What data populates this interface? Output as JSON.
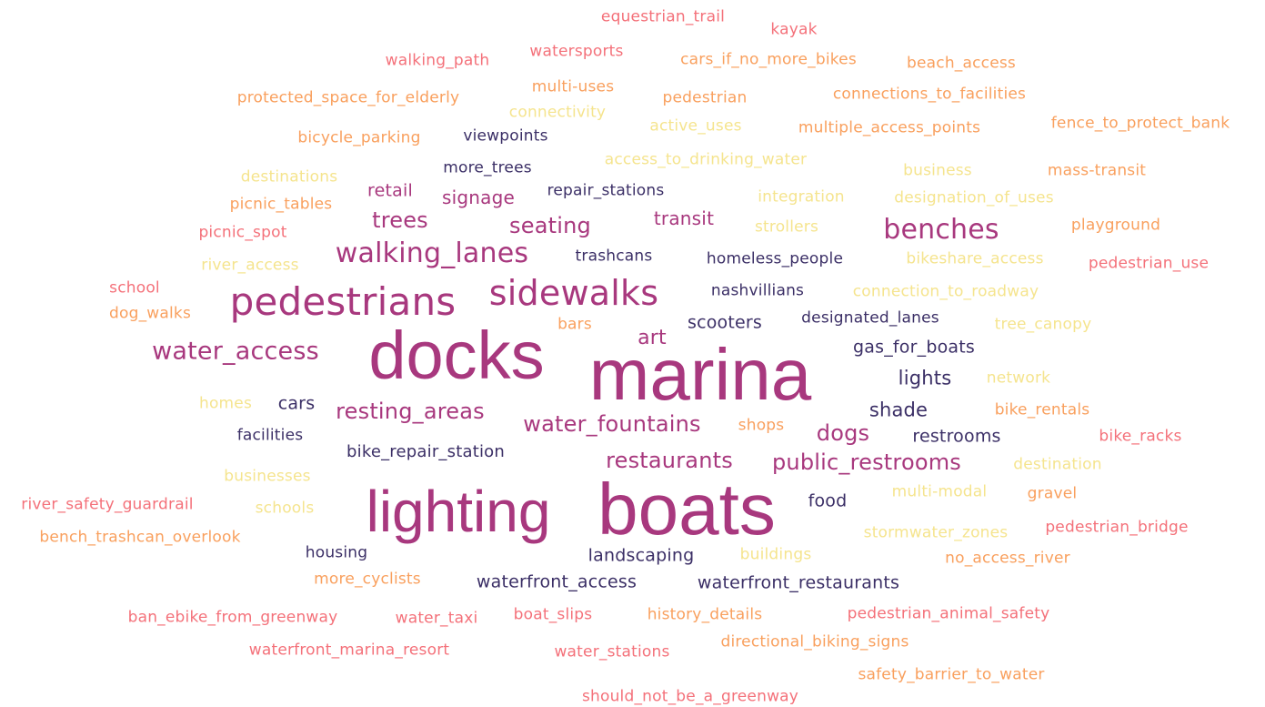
{
  "palette": {
    "dark_navy": "#3b2f66",
    "magenta": "#a8387e",
    "pink_red": "#f4717a",
    "orange": "#f9a05e",
    "pale_yellow": "#f5e48e"
  },
  "words": [
    {
      "text": "marina",
      "color": "#a8387e"
    },
    {
      "text": "boats",
      "color": "#a8387e"
    },
    {
      "text": "docks",
      "color": "#a8387e"
    },
    {
      "text": "lighting",
      "color": "#a8387e"
    },
    {
      "text": "pedestrians",
      "color": "#a8387e"
    },
    {
      "text": "sidewalks",
      "color": "#a8387e"
    },
    {
      "text": "benches",
      "color": "#a8387e"
    },
    {
      "text": "walking_lanes",
      "color": "#a8387e"
    },
    {
      "text": "water_access",
      "color": "#a8387e"
    },
    {
      "text": "resting_areas",
      "color": "#a8387e"
    },
    {
      "text": "water_fountains",
      "color": "#a8387e"
    },
    {
      "text": "restaurants",
      "color": "#a8387e"
    },
    {
      "text": "public_restrooms",
      "color": "#a8387e"
    },
    {
      "text": "seating",
      "color": "#a8387e"
    },
    {
      "text": "trees",
      "color": "#a8387e"
    },
    {
      "text": "signage",
      "color": "#a8387e"
    },
    {
      "text": "transit",
      "color": "#a8387e"
    },
    {
      "text": "art",
      "color": "#a8387e"
    },
    {
      "text": "retail",
      "color": "#a8387e"
    },
    {
      "text": "dogs",
      "color": "#a8387e"
    },
    {
      "text": "equestrian_trail",
      "color": "#f4717a"
    },
    {
      "text": "kayak",
      "color": "#f4717a"
    },
    {
      "text": "walking_path",
      "color": "#f4717a"
    },
    {
      "text": "watersports",
      "color": "#f4717a"
    },
    {
      "text": "cars_if_no_more_bikes",
      "color": "#f9a05e"
    },
    {
      "text": "beach_access",
      "color": "#f9a05e"
    },
    {
      "text": "multi-uses",
      "color": "#f9a05e"
    },
    {
      "text": "protected_space_for_elderly",
      "color": "#f9a05e"
    },
    {
      "text": "pedestrian",
      "color": "#f9a05e"
    },
    {
      "text": "connections_to_facilities",
      "color": "#f9a05e"
    },
    {
      "text": "connectivity",
      "color": "#f5e48e"
    },
    {
      "text": "active_uses",
      "color": "#f5e48e"
    },
    {
      "text": "multiple_access_points",
      "color": "#f9a05e"
    },
    {
      "text": "fence_to_protect_bank",
      "color": "#f9a05e"
    },
    {
      "text": "bicycle_parking",
      "color": "#f9a05e"
    },
    {
      "text": "viewpoints",
      "color": "#3b2f66"
    },
    {
      "text": "more_trees",
      "color": "#3b2f66"
    },
    {
      "text": "access_to_drinking_water",
      "color": "#f5e48e"
    },
    {
      "text": "destinations",
      "color": "#f5e48e"
    },
    {
      "text": "business",
      "color": "#f5e48e"
    },
    {
      "text": "mass-transit",
      "color": "#f9a05e"
    },
    {
      "text": "picnic_tables",
      "color": "#f9a05e"
    },
    {
      "text": "repair_stations",
      "color": "#3b2f66"
    },
    {
      "text": "integration",
      "color": "#f5e48e"
    },
    {
      "text": "designation_of_uses",
      "color": "#f5e48e"
    },
    {
      "text": "picnic_spot",
      "color": "#f4717a"
    },
    {
      "text": "strollers",
      "color": "#f5e48e"
    },
    {
      "text": "playground",
      "color": "#f9a05e"
    },
    {
      "text": "trashcans",
      "color": "#3b2f66"
    },
    {
      "text": "homeless_people",
      "color": "#3b2f66"
    },
    {
      "text": "river_access",
      "color": "#f5e48e"
    },
    {
      "text": "bikeshare_access",
      "color": "#f5e48e"
    },
    {
      "text": "pedestrian_use",
      "color": "#f4717a"
    },
    {
      "text": "school",
      "color": "#f4717a"
    },
    {
      "text": "nashvillians",
      "color": "#3b2f66"
    },
    {
      "text": "connection_to_roadway",
      "color": "#f5e48e"
    },
    {
      "text": "dog_walks",
      "color": "#f9a05e"
    },
    {
      "text": "bars",
      "color": "#f9a05e"
    },
    {
      "text": "scooters",
      "color": "#3b2f66"
    },
    {
      "text": "designated_lanes",
      "color": "#3b2f66"
    },
    {
      "text": "tree_canopy",
      "color": "#f5e48e"
    },
    {
      "text": "gas_for_boats",
      "color": "#3b2f66"
    },
    {
      "text": "lights",
      "color": "#3b2f66"
    },
    {
      "text": "network",
      "color": "#f5e48e"
    },
    {
      "text": "homes",
      "color": "#f5e48e"
    },
    {
      "text": "cars",
      "color": "#3b2f66"
    },
    {
      "text": "shade",
      "color": "#3b2f66"
    },
    {
      "text": "bike_rentals",
      "color": "#f9a05e"
    },
    {
      "text": "facilities",
      "color": "#3b2f66"
    },
    {
      "text": "shops",
      "color": "#f9a05e"
    },
    {
      "text": "restrooms",
      "color": "#3b2f66"
    },
    {
      "text": "bike_racks",
      "color": "#f4717a"
    },
    {
      "text": "bike_repair_station",
      "color": "#3b2f66"
    },
    {
      "text": "businesses",
      "color": "#f5e48e"
    },
    {
      "text": "destination",
      "color": "#f5e48e"
    },
    {
      "text": "river_safety_guardrail",
      "color": "#f4717a"
    },
    {
      "text": "schools",
      "color": "#f5e48e"
    },
    {
      "text": "food",
      "color": "#3b2f66"
    },
    {
      "text": "multi-modal",
      "color": "#f5e48e"
    },
    {
      "text": "gravel",
      "color": "#f9a05e"
    },
    {
      "text": "bench_trashcan_overlook",
      "color": "#f9a05e"
    },
    {
      "text": "stormwater_zones",
      "color": "#f5e48e"
    },
    {
      "text": "pedestrian_bridge",
      "color": "#f4717a"
    },
    {
      "text": "housing",
      "color": "#3b2f66"
    },
    {
      "text": "landscaping",
      "color": "#3b2f66"
    },
    {
      "text": "buildings",
      "color": "#f5e48e"
    },
    {
      "text": "no_access_river",
      "color": "#f9a05e"
    },
    {
      "text": "more_cyclists",
      "color": "#f9a05e"
    },
    {
      "text": "waterfront_access",
      "color": "#3b2f66"
    },
    {
      "text": "waterfront_restaurants",
      "color": "#3b2f66"
    },
    {
      "text": "ban_ebike_from_greenway",
      "color": "#f4717a"
    },
    {
      "text": "water_taxi",
      "color": "#f4717a"
    },
    {
      "text": "boat_slips",
      "color": "#f4717a"
    },
    {
      "text": "history_details",
      "color": "#f9a05e"
    },
    {
      "text": "pedestrian_animal_safety",
      "color": "#f4717a"
    },
    {
      "text": "waterfront_marina_resort",
      "color": "#f4717a"
    },
    {
      "text": "water_stations",
      "color": "#f4717a"
    },
    {
      "text": "directional_biking_signs",
      "color": "#f9a05e"
    },
    {
      "text": "safety_barrier_to_water",
      "color": "#f9a05e"
    },
    {
      "text": "should_not_be_a_greenway",
      "color": "#f4717a"
    }
  ]
}
